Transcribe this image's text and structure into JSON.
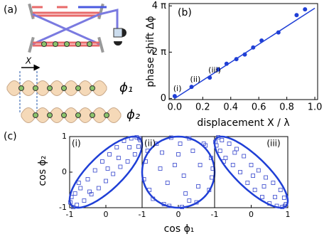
{
  "diagram": {
    "label": "(a)",
    "displacement": "X",
    "lattice_1": "ϕ₁",
    "lattice_2": "ϕ₂"
  },
  "chart_data": [
    {
      "type": "scatter",
      "label": "(b)",
      "x_label": "displacement X / λ",
      "y_label": "phase shift Δϕ",
      "color": "#1f3fd6",
      "x": [
        0.0,
        0.12,
        0.25,
        0.31,
        0.37,
        0.44,
        0.5,
        0.56,
        0.62,
        0.74,
        0.87,
        0.93
      ],
      "values": [
        0.1,
        0.5,
        0.9,
        1.25,
        1.5,
        1.7,
        1.9,
        2.2,
        2.5,
        2.85,
        3.6,
        3.85
      ],
      "fit": {
        "x": [
          0,
          1
        ],
        "y": [
          0,
          3.9
        ]
      },
      "annotations": [
        "(i)",
        "(ii)",
        "(iii)"
      ],
      "xlim": [
        -0.04,
        1.02
      ],
      "ylim": [
        -0.05,
        4.1
      ],
      "xticks": [
        {
          "value": 0,
          "label": "0.0"
        },
        0.2,
        0.4,
        0.6,
        0.8,
        {
          "value": 1,
          "label": "1.0"
        }
      ],
      "yticks": [
        0,
        {
          "value": 2,
          "label": "2 π"
        },
        {
          "value": 4,
          "label": "4 π"
        }
      ]
    },
    {
      "type": "scatter",
      "label": "(c)",
      "panel": "(i)",
      "x_label": "cos ϕ₁",
      "y_label": "cos ϕ₂",
      "color": "#3344cc",
      "fit_phase": 0.22,
      "x": [
        -0.95,
        -0.9,
        -0.85,
        -0.8,
        -0.7,
        -0.6,
        -0.5,
        -0.4,
        -0.3,
        -0.2,
        -0.1,
        0,
        0.1,
        0.2,
        0.3,
        0.4,
        0.5,
        0.6,
        0.7,
        0.8,
        0.85,
        0.9,
        0.95,
        -0.75,
        -0.45,
        0.05,
        0.35,
        0.65,
        0.92,
        -0.98
      ],
      "values": [
        -0.7,
        -0.98,
        -0.6,
        -0.92,
        -0.45,
        -0.8,
        -0.2,
        -0.62,
        0.05,
        -0.45,
        0.3,
        -0.25,
        0.5,
        -0.05,
        0.7,
        0.15,
        0.88,
        0.3,
        0.95,
        0.5,
        0.98,
        0.72,
        0.9,
        -0.3,
        -0.55,
        0.1,
        0.4,
        0.7,
        0.95,
        -0.85
      ],
      "xlim": [
        -1,
        1
      ],
      "ylim": [
        -1,
        1
      ],
      "xticks": [
        -1,
        0
      ],
      "yticks": [
        -1,
        0,
        1
      ]
    },
    {
      "type": "scatter",
      "panel": "(ii)",
      "color": "#3344cc",
      "fit_phase": 0.5,
      "x": [
        0.9,
        0.7,
        0.3,
        -0.2,
        -0.6,
        -0.9,
        -0.8,
        -0.4,
        0.1,
        0.5,
        0.85,
        0.95,
        0.6,
        0.0,
        -0.5,
        -0.95,
        -0.3,
        0.2,
        0.4,
        -0.1,
        0.75,
        -0.7,
        0.15,
        -0.45,
        0.55,
        0.92,
        -0.85,
        0.05,
        0.3,
        -0.25
      ],
      "values": [
        0.4,
        0.8,
        0.95,
        0.97,
        0.8,
        0.3,
        -0.5,
        -0.9,
        -0.98,
        -0.85,
        -0.5,
        0.1,
        0.2,
        0.5,
        0.1,
        -0.2,
        -0.3,
        -0.6,
        0.6,
        0.2,
        0.75,
        -0.75,
        -0.1,
        0.55,
        -0.4,
        -0.15,
        0.6,
        0.8,
        -0.8,
        -0.95
      ],
      "xlim": [
        -1,
        1
      ],
      "ylim": [
        -1,
        1
      ],
      "xticks": [
        -1,
        0
      ]
    },
    {
      "type": "scatter",
      "panel": "(iii)",
      "color": "#3344cc",
      "fit_phase": 0.8,
      "x": [
        -0.95,
        -0.9,
        -0.85,
        -0.8,
        -0.7,
        -0.6,
        -0.5,
        -0.4,
        -0.3,
        -0.2,
        -0.1,
        0,
        0.1,
        0.2,
        0.3,
        0.4,
        0.5,
        0.6,
        0.7,
        0.8,
        0.85,
        0.9,
        0.95,
        -0.75,
        -0.45,
        0.05,
        0.35,
        0.65,
        0.92,
        -0.98
      ],
      "values": [
        0.75,
        0.98,
        0.6,
        0.9,
        0.4,
        0.8,
        0.2,
        0.65,
        0.0,
        0.45,
        -0.3,
        0.2,
        -0.5,
        0.05,
        -0.7,
        -0.15,
        -0.88,
        -0.3,
        -0.95,
        -0.5,
        -0.98,
        -0.72,
        -0.9,
        0.3,
        0.55,
        -0.1,
        -0.4,
        -0.7,
        -0.95,
        0.85
      ],
      "xlim": [
        -1,
        1
      ],
      "ylim": [
        -1,
        1
      ],
      "xticks": [
        -1,
        0,
        1
      ]
    }
  ]
}
